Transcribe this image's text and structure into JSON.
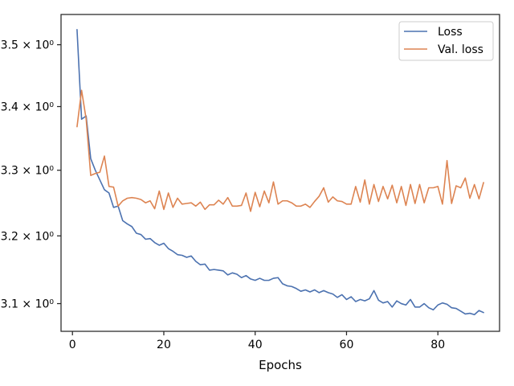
{
  "chart_data": {
    "type": "line",
    "xlabel": "Epochs",
    "ylabel": "",
    "xlim": [
      -2.5,
      93.5
    ],
    "ylim": [
      3.06,
      3.55
    ],
    "yscale": "log",
    "grid": false,
    "legend_position": "top-right",
    "xticks": [
      0,
      20,
      40,
      60,
      80
    ],
    "yticks": [
      {
        "value": 3.1,
        "label": "3.1 × 10⁰"
      },
      {
        "value": 3.2,
        "label": "3.2 × 10⁰"
      },
      {
        "value": 3.3,
        "label": "3.3 × 10⁰"
      },
      {
        "value": 3.4,
        "label": "3.4 × 10⁰"
      },
      {
        "value": 3.5,
        "label": "3.5 × 10⁰"
      }
    ],
    "x": [
      1,
      2,
      3,
      4,
      5,
      6,
      7,
      8,
      9,
      10,
      11,
      12,
      13,
      14,
      15,
      16,
      17,
      18,
      19,
      20,
      21,
      22,
      23,
      24,
      25,
      26,
      27,
      28,
      29,
      30,
      31,
      32,
      33,
      34,
      35,
      36,
      37,
      38,
      39,
      40,
      41,
      42,
      43,
      44,
      45,
      46,
      47,
      48,
      49,
      50,
      51,
      52,
      53,
      54,
      55,
      56,
      57,
      58,
      59,
      60,
      61,
      62,
      63,
      64,
      65,
      66,
      67,
      68,
      69,
      70,
      71,
      72,
      73,
      74,
      75,
      76,
      77,
      78,
      79,
      80,
      81,
      82,
      83,
      84,
      85,
      86,
      87,
      88,
      89,
      90
    ],
    "series": [
      {
        "name": "Loss",
        "color": "#4c72b0",
        "values": [
          3.525,
          3.38,
          3.385,
          3.318,
          3.3,
          3.285,
          3.27,
          3.265,
          3.243,
          3.245,
          3.223,
          3.218,
          3.214,
          3.204,
          3.202,
          3.195,
          3.196,
          3.19,
          3.186,
          3.189,
          3.181,
          3.177,
          3.172,
          3.171,
          3.168,
          3.17,
          3.162,
          3.157,
          3.158,
          3.149,
          3.15,
          3.149,
          3.148,
          3.142,
          3.145,
          3.143,
          3.138,
          3.141,
          3.136,
          3.134,
          3.137,
          3.134,
          3.134,
          3.137,
          3.138,
          3.129,
          3.126,
          3.125,
          3.122,
          3.118,
          3.12,
          3.117,
          3.12,
          3.116,
          3.119,
          3.116,
          3.114,
          3.109,
          3.113,
          3.106,
          3.11,
          3.103,
          3.106,
          3.104,
          3.107,
          3.119,
          3.105,
          3.101,
          3.103,
          3.095,
          3.104,
          3.1,
          3.098,
          3.106,
          3.095,
          3.095,
          3.1,
          3.094,
          3.091,
          3.098,
          3.101,
          3.099,
          3.094,
          3.093,
          3.089,
          3.085,
          3.086,
          3.084,
          3.09,
          3.087
        ]
      },
      {
        "name": "Val. loss",
        "color": "#dd8452",
        "values": [
          3.368,
          3.426,
          3.38,
          3.292,
          3.295,
          3.297,
          3.322,
          3.275,
          3.274,
          3.245,
          3.253,
          3.257,
          3.258,
          3.257,
          3.255,
          3.25,
          3.253,
          3.241,
          3.268,
          3.24,
          3.265,
          3.243,
          3.257,
          3.248,
          3.249,
          3.25,
          3.245,
          3.251,
          3.24,
          3.247,
          3.247,
          3.254,
          3.248,
          3.258,
          3.245,
          3.245,
          3.246,
          3.265,
          3.237,
          3.266,
          3.244,
          3.268,
          3.25,
          3.282,
          3.248,
          3.253,
          3.253,
          3.25,
          3.245,
          3.245,
          3.248,
          3.243,
          3.252,
          3.26,
          3.273,
          3.251,
          3.259,
          3.253,
          3.252,
          3.248,
          3.248,
          3.275,
          3.251,
          3.285,
          3.248,
          3.278,
          3.252,
          3.275,
          3.256,
          3.277,
          3.25,
          3.275,
          3.246,
          3.278,
          3.249,
          3.278,
          3.25,
          3.273,
          3.273,
          3.275,
          3.248,
          3.315,
          3.249,
          3.276,
          3.273,
          3.288,
          3.257,
          3.278,
          3.256,
          3.281
        ]
      }
    ]
  }
}
